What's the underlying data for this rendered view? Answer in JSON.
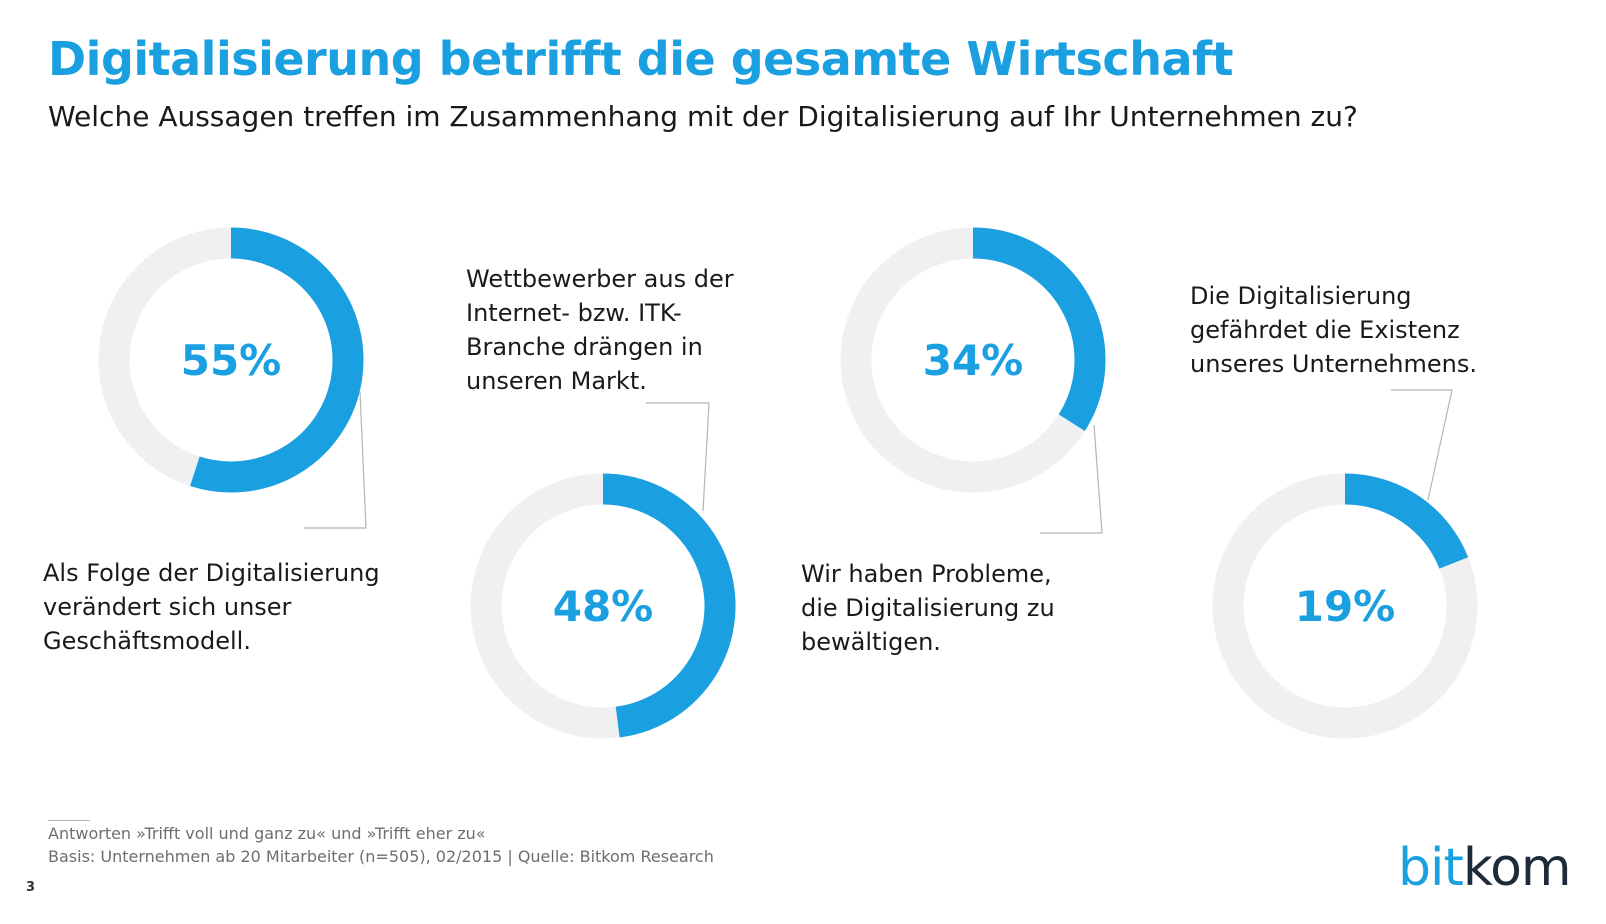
{
  "header": {
    "title": "Digitalisierung betrifft die gesamte Wirtschaft",
    "subtitle": "Welche Aussagen treffen im Zusammenhang mit der Digitalisierung auf Ihr Unternehmen zu?"
  },
  "chart_data": [
    {
      "type": "pie",
      "style": "donut",
      "value": 55,
      "value_label": "55%",
      "statement": "Als Folge der Digitalisierung verändert sich unser Geschäftsmodell.",
      "statement_lines": [
        "Als Folge der Digitalisierung",
        "verändert sich unser",
        "Geschäftsmodell."
      ]
    },
    {
      "type": "pie",
      "style": "donut",
      "value": 48,
      "value_label": "48%",
      "statement": "Wettbewerber aus der Internet- bzw. ITK-Branche drängen in unseren Markt.",
      "statement_lines": [
        "Wettbewerber aus der",
        "Internet- bzw. ITK-",
        "Branche drängen in",
        "unseren Markt."
      ]
    },
    {
      "type": "pie",
      "style": "donut",
      "value": 34,
      "value_label": "34%",
      "statement": "Wir haben Probleme, die Digitalisierung zu bewältigen.",
      "statement_lines": [
        "Wir haben Probleme,",
        "die Digitalisierung zu",
        "bewältigen."
      ]
    },
    {
      "type": "pie",
      "style": "donut",
      "value": 19,
      "value_label": "19%",
      "statement": "Die Digitalisierung gefährdet die Existenz unseres Unternehmens.",
      "statement_lines": [
        "Die Digitalisierung",
        "gefährdet die Existenz",
        "unseres Unternehmens."
      ]
    }
  ],
  "colors": {
    "accent": "#1a9fe0",
    "track": "#f0f0f0",
    "connector": "#b5b5b5",
    "logo_dark": "#1d2b3a"
  },
  "footer": {
    "note": "Antworten »Trifft voll und ganz zu« und »Trifft eher zu«",
    "basis": "Basis: Unternehmen ab 20 Mitarbeiter (n=505), 02/2015 | Quelle: Bitkom Research",
    "page_number": "3",
    "logo_part1": "bit",
    "logo_part2": "kom"
  }
}
